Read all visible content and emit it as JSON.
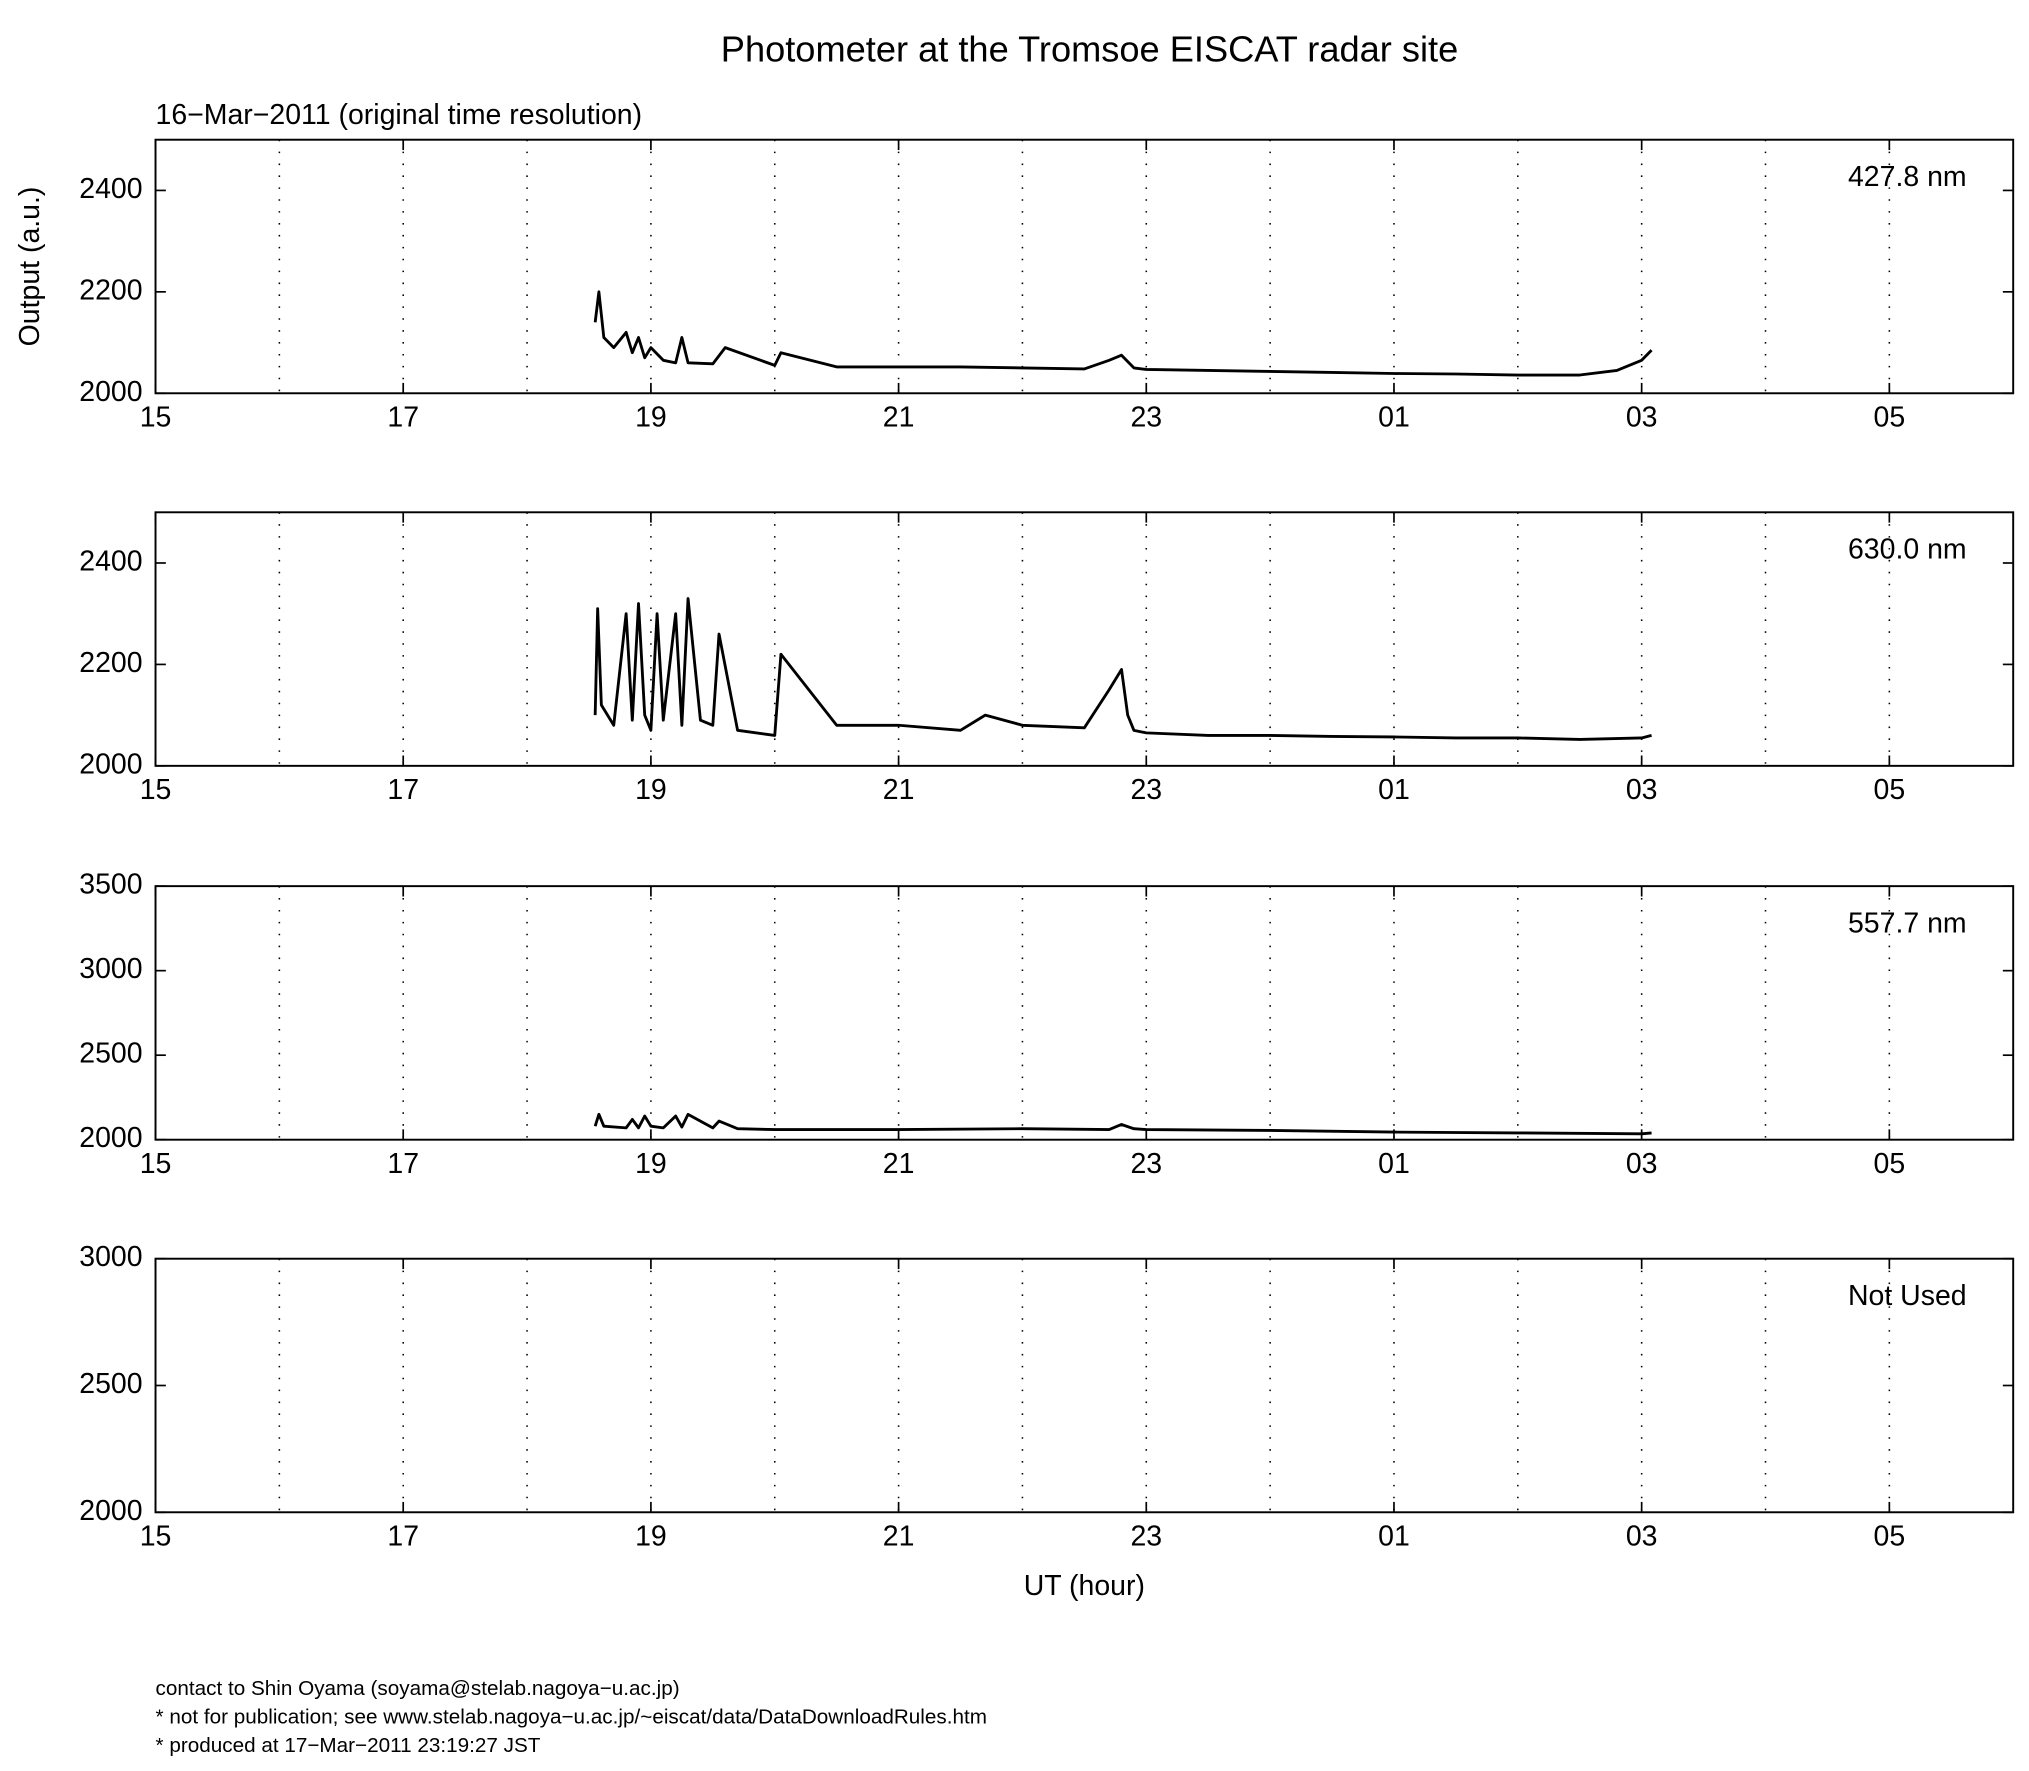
{
  "title": "Photometer at the Tromsoe EISCAT radar site",
  "subtitle": "16−Mar−2011 (original time resolution)",
  "footer": [
    "contact to Shin Oyama (soyama@stelab.nagoya−u.ac.jp)",
    "* not for publication; see www.stelab.nagoya−u.ac.jp/~eiscat/data/DataDownloadRules.htm",
    "* produced at 17−Mar−2011 23:19:27 JST"
  ],
  "chart_data": [
    {
      "type": "line",
      "label": "427.8 nm",
      "ylabel": "Output (a.u.)",
      "color": "#000000",
      "grid": true,
      "xlim": [
        15,
        30
      ],
      "xticks": [
        15,
        17,
        19,
        21,
        23,
        {
          "value": 25,
          "label": "01"
        },
        {
          "value": 27,
          "label": "03"
        },
        {
          "value": 29,
          "label": "05"
        }
      ],
      "xgrid_minor": [
        16,
        18,
        20,
        22,
        24,
        26,
        28
      ],
      "ylim": [
        2000,
        2500
      ],
      "yticks": [
        2000,
        2200,
        2400
      ],
      "x": [
        18.55,
        18.58,
        18.62,
        18.7,
        18.8,
        18.85,
        18.9,
        18.95,
        19.0,
        19.1,
        19.2,
        19.25,
        19.3,
        19.5,
        19.6,
        20.0,
        20.05,
        20.5,
        21,
        21.5,
        22,
        22.5,
        22.7,
        22.8,
        22.9,
        23,
        23.5,
        24,
        24.5,
        25,
        25.5,
        26,
        26.5,
        26.8,
        27,
        27.08
      ],
      "values": [
        2140,
        2200,
        2110,
        2090,
        2120,
        2080,
        2110,
        2070,
        2090,
        2065,
        2060,
        2110,
        2060,
        2058,
        2090,
        2055,
        2080,
        2052,
        2052,
        2052,
        2050,
        2048,
        2065,
        2075,
        2050,
        2047,
        2045,
        2043,
        2041,
        2039,
        2038,
        2036,
        2036,
        2045,
        2065,
        2085
      ]
    },
    {
      "type": "line",
      "label": "630.0 nm",
      "color": "#000000",
      "grid": true,
      "xlim": [
        15,
        30
      ],
      "xticks": [
        15,
        17,
        19,
        21,
        23,
        {
          "value": 25,
          "label": "01"
        },
        {
          "value": 27,
          "label": "03"
        },
        {
          "value": 29,
          "label": "05"
        }
      ],
      "xgrid_minor": [
        16,
        18,
        20,
        22,
        24,
        26,
        28
      ],
      "ylim": [
        2000,
        2500
      ],
      "yticks": [
        2000,
        2200,
        2400
      ],
      "x": [
        18.55,
        18.57,
        18.6,
        18.7,
        18.8,
        18.85,
        18.9,
        18.95,
        19.0,
        19.05,
        19.1,
        19.2,
        19.25,
        19.3,
        19.4,
        19.5,
        19.55,
        19.7,
        20.0,
        20.05,
        20.5,
        21,
        21.5,
        21.7,
        22,
        22.5,
        22.7,
        22.8,
        22.85,
        22.9,
        23,
        23.5,
        24,
        24.5,
        25,
        25.5,
        26,
        26.5,
        27,
        27.08
      ],
      "values": [
        2100,
        2310,
        2120,
        2080,
        2300,
        2090,
        2320,
        2100,
        2070,
        2300,
        2090,
        2300,
        2080,
        2330,
        2090,
        2080,
        2260,
        2070,
        2060,
        2220,
        2080,
        2080,
        2070,
        2100,
        2080,
        2075,
        2150,
        2190,
        2100,
        2070,
        2065,
        2060,
        2060,
        2058,
        2057,
        2055,
        2055,
        2052,
        2055,
        2060
      ]
    },
    {
      "type": "line",
      "label": "557.7 nm",
      "color": "#000000",
      "grid": true,
      "xlim": [
        15,
        30
      ],
      "xticks": [
        15,
        17,
        19,
        21,
        23,
        {
          "value": 25,
          "label": "01"
        },
        {
          "value": 27,
          "label": "03"
        },
        {
          "value": 29,
          "label": "05"
        }
      ],
      "xgrid_minor": [
        16,
        18,
        20,
        22,
        24,
        26,
        28
      ],
      "ylim": [
        2000,
        3500
      ],
      "yticks": [
        2000,
        2500,
        3000,
        3500
      ],
      "x": [
        18.55,
        18.58,
        18.62,
        18.8,
        18.85,
        18.9,
        18.95,
        19.0,
        19.1,
        19.2,
        19.25,
        19.3,
        19.5,
        19.55,
        19.7,
        20,
        21,
        22,
        22.7,
        22.8,
        22.9,
        23,
        24,
        25,
        26,
        27,
        27.08
      ],
      "values": [
        2080,
        2150,
        2080,
        2070,
        2120,
        2070,
        2140,
        2080,
        2070,
        2140,
        2075,
        2150,
        2070,
        2110,
        2065,
        2060,
        2060,
        2065,
        2060,
        2090,
        2065,
        2060,
        2055,
        2045,
        2040,
        2035,
        2040
      ]
    },
    {
      "type": "empty",
      "label": "Not Used",
      "xlabel": "UT (hour)",
      "grid": true,
      "xlim": [
        15,
        30
      ],
      "xticks": [
        15,
        17,
        19,
        21,
        23,
        {
          "value": 25,
          "label": "01"
        },
        {
          "value": 27,
          "label": "03"
        },
        {
          "value": 29,
          "label": "05"
        }
      ],
      "xgrid_minor": [
        16,
        18,
        20,
        22,
        24,
        26,
        28
      ],
      "ylim": [
        2000,
        3000
      ],
      "yticks": [
        2000,
        2500,
        3000
      ]
    }
  ]
}
